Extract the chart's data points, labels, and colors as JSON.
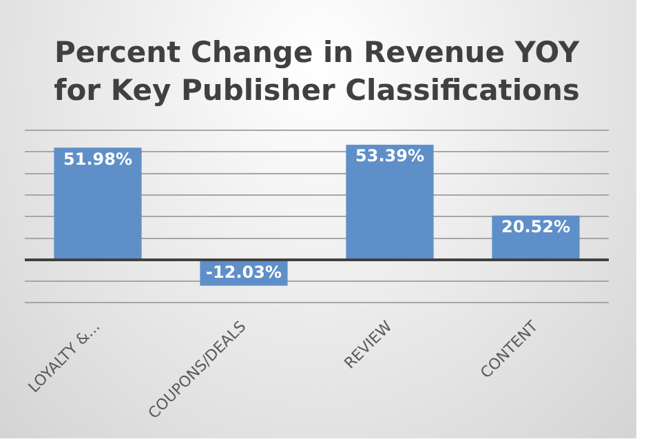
{
  "chart_data": {
    "type": "bar",
    "title": "Percent Change in Revenue YOY\nfor Key Publisher Classifications",
    "categories": [
      "LOYALTY &...",
      "COUPONS/DEALS",
      "REVIEW",
      "CONTENT"
    ],
    "values": [
      51.98,
      -12.03,
      53.39,
      20.52
    ],
    "color": "#5f8fc8",
    "value_labels": [
      "51.98%",
      "-12.03%",
      "53.39%",
      "20.52%"
    ],
    "ylim": [
      -20,
      60
    ],
    "yticks": [
      {
        "value": -20,
        "label": null
      },
      {
        "value": -10,
        "label": null
      },
      {
        "value": 0,
        "label": null
      },
      {
        "value": 10,
        "label": null
      },
      {
        "value": 20,
        "label": null
      },
      {
        "value": 30,
        "label": null
      },
      {
        "value": 40,
        "label": null
      },
      {
        "value": 50,
        "label": null
      },
      {
        "value": 60,
        "label": null
      }
    ],
    "grid": "y",
    "tick_labels": "x",
    "legend": false
  }
}
